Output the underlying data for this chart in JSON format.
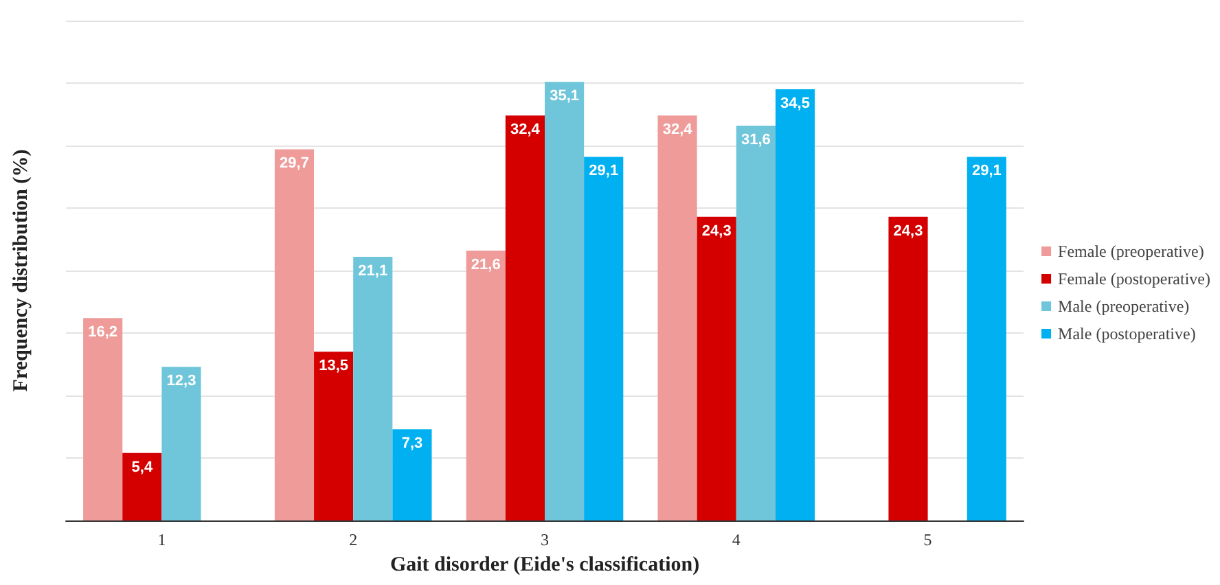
{
  "chart_data": {
    "type": "bar",
    "xlabel": "Gait disorder (Eide's classification)",
    "ylabel": "Frequency distribution (%)",
    "categories": [
      "1",
      "2",
      "3",
      "4",
      "5"
    ],
    "series": [
      {
        "name": "Female (preoperative)",
        "color": "#ee9b99",
        "values": [
          16.2,
          29.7,
          21.6,
          32.4,
          null
        ],
        "value_labels": [
          "16,2",
          "29,7",
          "21,6",
          "32,4",
          null
        ]
      },
      {
        "name": "Female (postoperative)",
        "color": "#d40000",
        "values": [
          5.4,
          13.5,
          32.4,
          24.3,
          24.3
        ],
        "value_labels": [
          "5,4",
          "13,5",
          "32,4",
          "24,3",
          "24,3"
        ]
      },
      {
        "name": "Male (preoperative)",
        "color": "#6fc6da",
        "values": [
          12.3,
          21.1,
          35.1,
          31.6,
          null
        ],
        "value_labels": [
          "12,3",
          "21,1",
          "35,1",
          "31,6",
          null
        ]
      },
      {
        "name": "Male (postoperative)",
        "color": "#00b0f0",
        "values": [
          null,
          7.3,
          29.1,
          34.5,
          29.1
        ],
        "value_labels": [
          null,
          "7,3",
          "29,1",
          "34,5",
          "29,1"
        ]
      }
    ],
    "ylim": [
      0,
      40
    ],
    "yticks": [
      {
        "value": 0,
        "label": null
      },
      {
        "value": 5,
        "label": null
      },
      {
        "value": 10,
        "label": null
      },
      {
        "value": 15,
        "label": null
      },
      {
        "value": 20,
        "label": null
      },
      {
        "value": 25,
        "label": null
      },
      {
        "value": 30,
        "label": null
      },
      {
        "value": 35,
        "label": null
      },
      {
        "value": 40,
        "label": null
      }
    ],
    "grid": "y",
    "legend": "right",
    "tick_labels": "x"
  }
}
